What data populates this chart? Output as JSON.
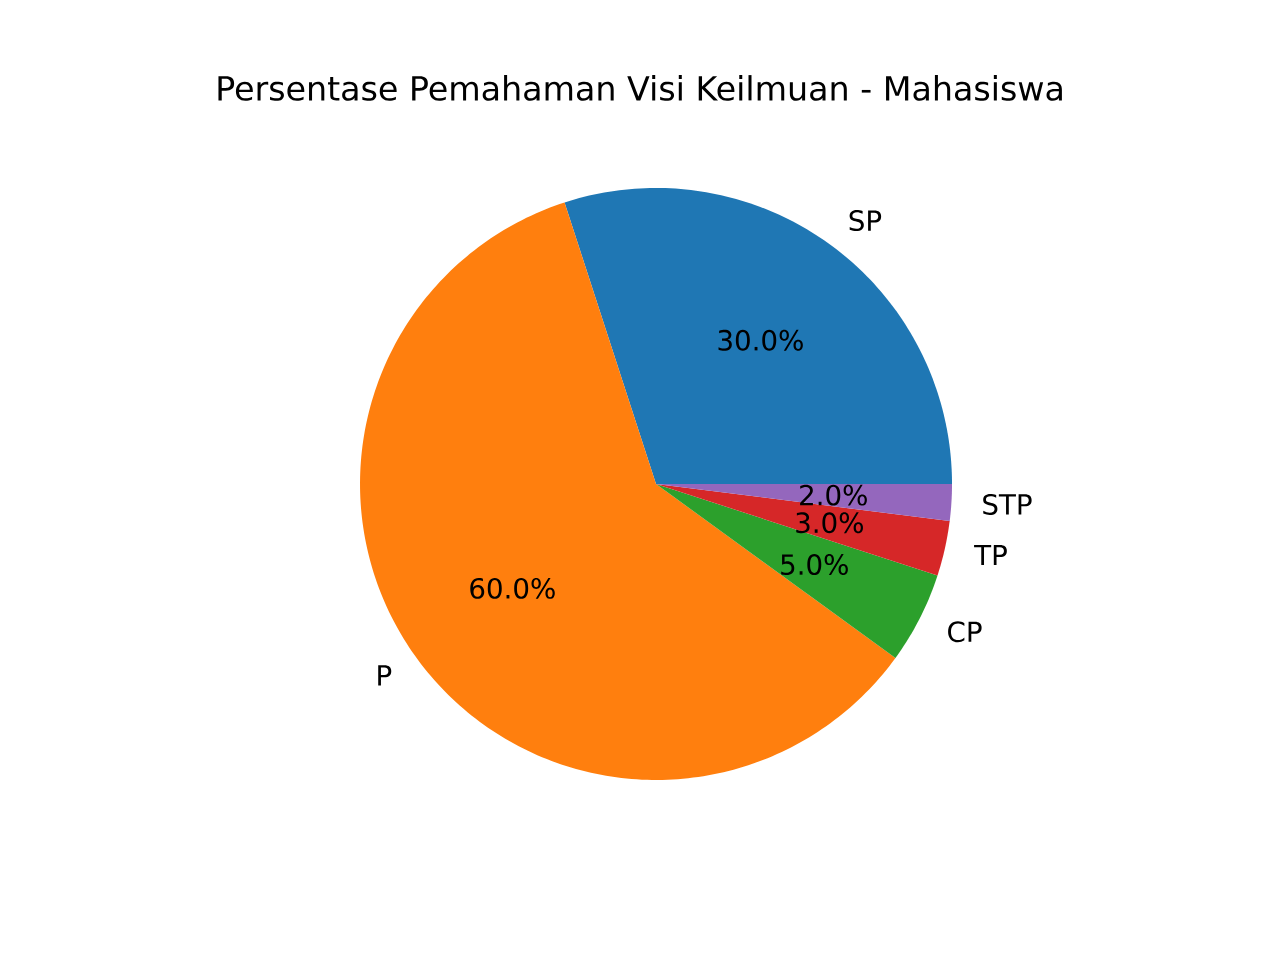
{
  "chart_data": {
    "type": "pie",
    "title": "Persentase Pemahaman Visi Keilmuan - Mahasiswa",
    "categories": [
      "SP",
      "P",
      "CP",
      "TP",
      "STP"
    ],
    "values": [
      30,
      60,
      5,
      3,
      2
    ],
    "colors": [
      "#1f77b4",
      "#ff7f0e",
      "#2ca02c",
      "#d62728",
      "#9467bd"
    ],
    "value_labels": [
      "30.0%",
      "60.0%",
      "5.0%",
      "3.0%",
      "2.0%"
    ]
  }
}
